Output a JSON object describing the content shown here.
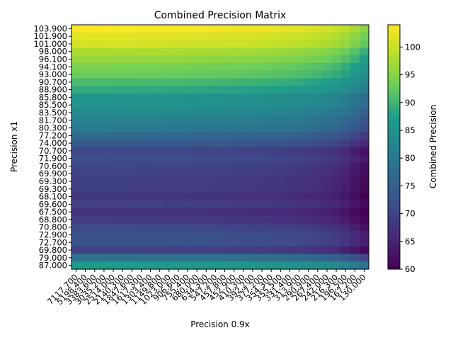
{
  "chart_data": {
    "type": "heatmap",
    "title": "Combined Precision Matrix",
    "xlabel": "Precision 0.9x",
    "ylabel": "Precision x1",
    "colorbar_label": "Combined Precision",
    "colormap": "viridis",
    "clim": [
      60,
      104
    ],
    "colorbar_ticks": [
      60,
      65,
      70,
      75,
      80,
      85,
      90,
      95,
      100
    ],
    "y_labels": [
      "103.900",
      "101.900",
      "101.000",
      "98.000",
      "96.100",
      "94.100",
      "93.000",
      "90.700",
      "88.900",
      "85.800",
      "85.500",
      "83.500",
      "81.700",
      "80.300",
      "77.200",
      "74.000",
      "70.700",
      "71.900",
      "70.600",
      "69.900",
      "69.300",
      "69.300",
      "68.100",
      "69.600",
      "67.500",
      "68.800",
      "70.800",
      "72.900",
      "72.700",
      "69.800",
      "79.000",
      "87.000"
    ],
    "x_labels": [
      "7117.700",
      "5198.400",
      "3383.600",
      "3035.200",
      "2514.000",
      "2140.300",
      "1847.600",
      "1617.300",
      "1303.400",
      "1149.800",
      "1023.000",
      "906.600",
      "755.400",
      "680.000",
      "634.300",
      "547.200",
      "457.800",
      "452.900",
      "410.300",
      "392.200",
      "377.200",
      "354.300",
      "355.500",
      "331.400",
      "313.900",
      "290.900",
      "267.400",
      "242.000",
      "216.300",
      "196.500",
      "167.200",
      "130.000"
    ],
    "row_base": [
      103.9,
      101.9,
      101.0,
      98.0,
      96.1,
      94.1,
      93.0,
      90.7,
      88.9,
      85.8,
      85.5,
      83.5,
      81.7,
      80.3,
      77.2,
      74.0,
      70.7,
      71.9,
      70.6,
      69.9,
      69.3,
      69.3,
      68.1,
      69.6,
      67.5,
      68.8,
      70.8,
      72.9,
      72.7,
      69.8,
      79.0,
      87.0
    ],
    "col_offset": [
      0.0,
      0.0,
      0.0,
      0.0,
      -0.1,
      -0.1,
      -0.1,
      -0.2,
      -0.2,
      -0.2,
      -0.3,
      -0.3,
      -0.4,
      -0.5,
      -0.5,
      -0.6,
      -0.7,
      -0.8,
      -0.9,
      -1.0,
      -1.1,
      -1.3,
      -1.5,
      -1.7,
      -2.0,
      -2.3,
      -2.7,
      -3.2,
      -3.9,
      -5.0,
      -6.5,
      -8.5
    ],
    "min_value": 60
  }
}
